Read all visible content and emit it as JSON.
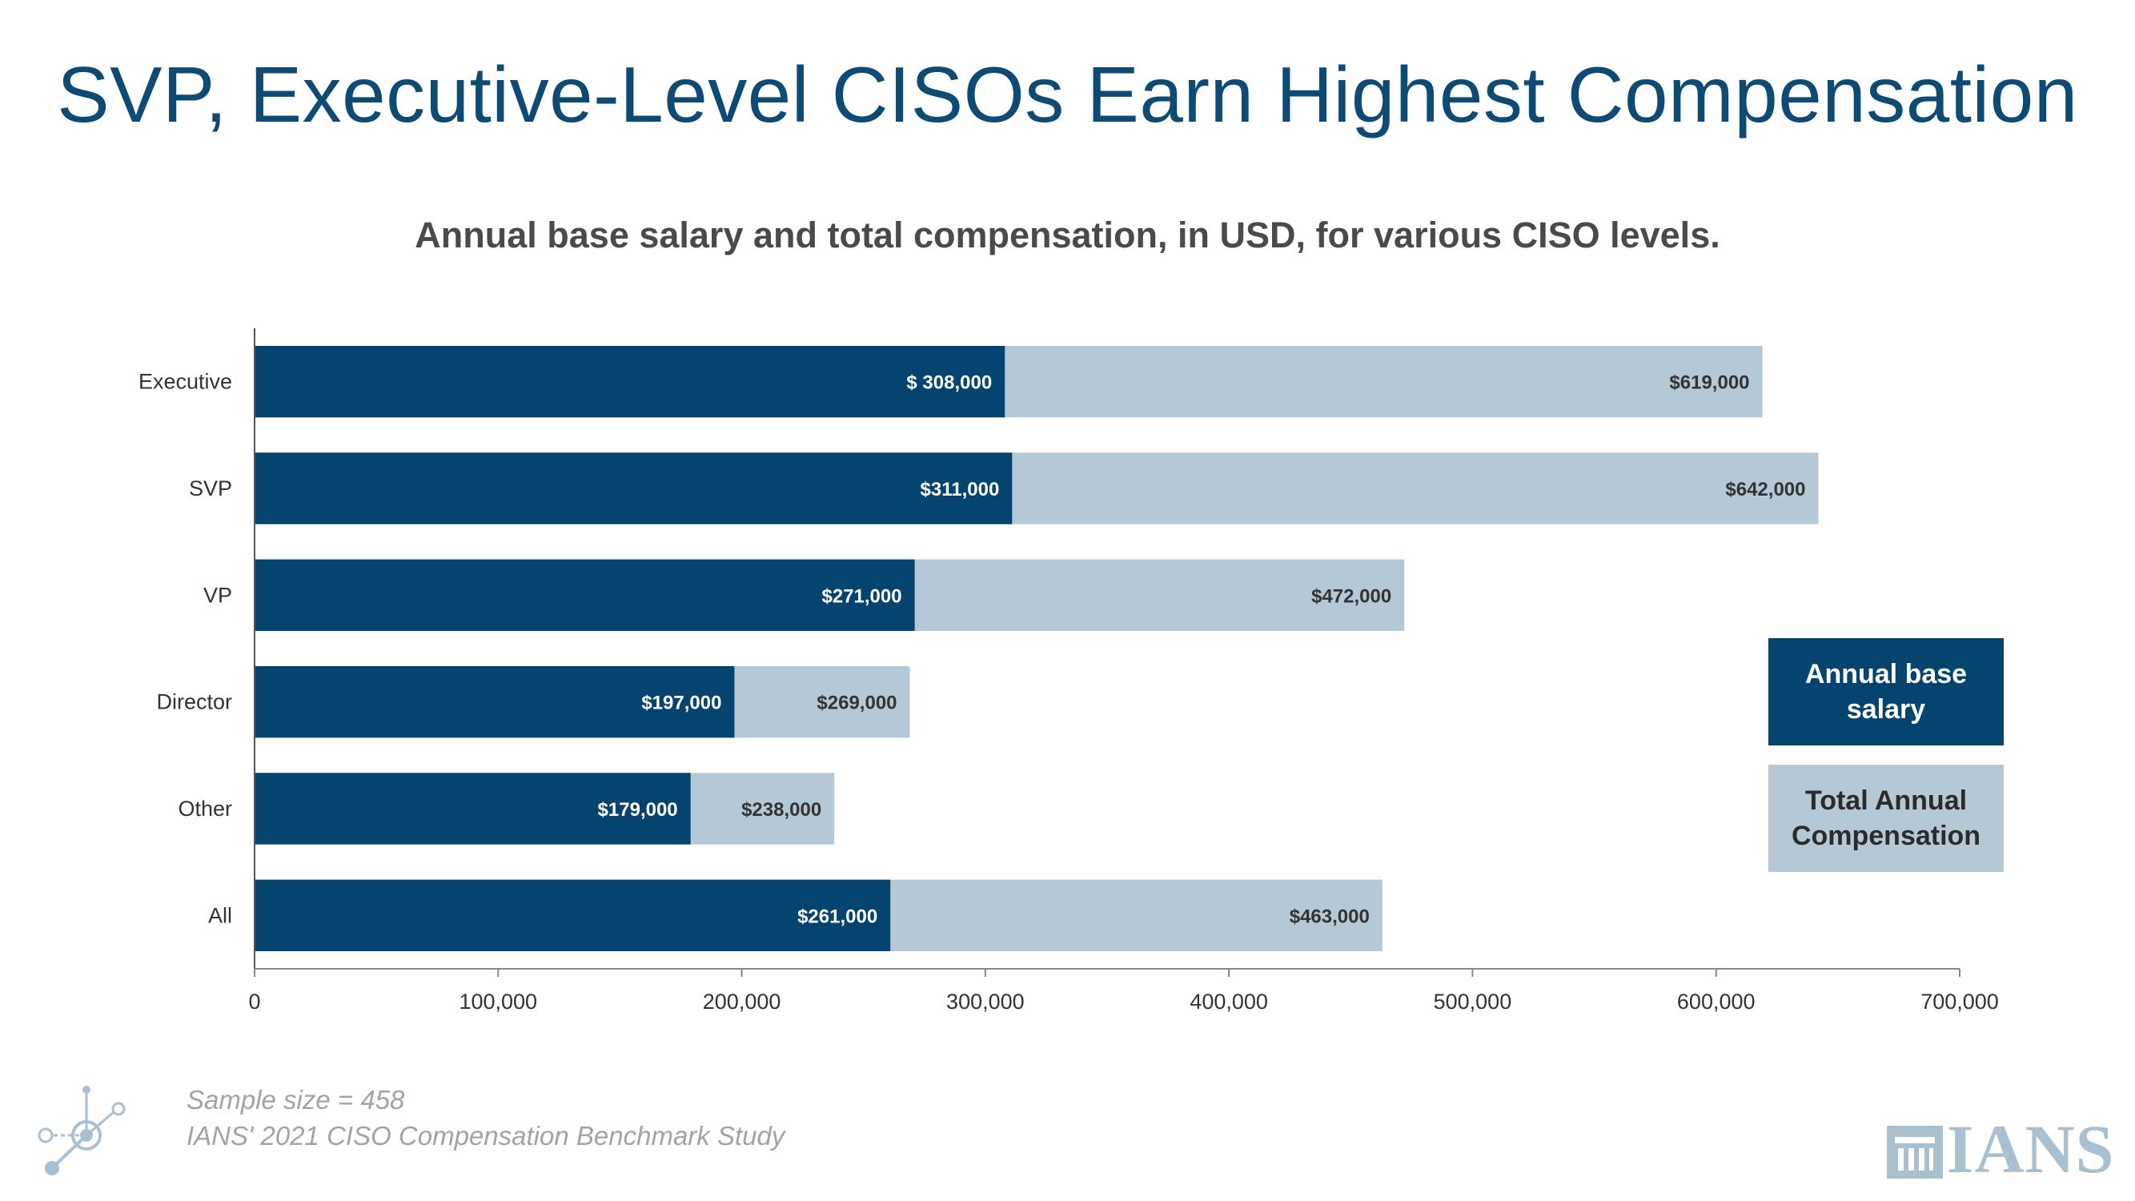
{
  "page": {
    "title": "SVP, Executive-Level CISOs Earn Highest Compensation",
    "subtitle": "Annual base salary and total compensation, in USD, for various CISO levels."
  },
  "legend": {
    "base_label": "Annual base salary",
    "total_label": "Total Annual Compensation"
  },
  "footnotes": {
    "sample": "Sample size = 458",
    "source": "IANS' 2021 CISO Compensation Benchmark Study"
  },
  "logo": {
    "text": "IANS"
  },
  "colors": {
    "title": "#0d4b75",
    "base": "#064470",
    "total": "#b4c8d5"
  },
  "chart_data": {
    "type": "bar",
    "orientation": "horizontal",
    "stacked": "overlay",
    "categories": [
      "Executive",
      "SVP",
      "VP",
      "Director",
      "Other",
      "All"
    ],
    "series": [
      {
        "name": "Annual base salary",
        "values": [
          308000,
          311000,
          271000,
          197000,
          179000,
          261000
        ],
        "labels": [
          "$ 308,000",
          "$311,000",
          "$271,000",
          "$197,000",
          "$179,000",
          "$261,000"
        ],
        "color": "#064470"
      },
      {
        "name": "Total Annual Compensation",
        "values": [
          619000,
          642000,
          472000,
          269000,
          238000,
          463000
        ],
        "labels": [
          "$619,000",
          "$642,000",
          "$472,000",
          "$269,000",
          "$238,000",
          "$463,000"
        ],
        "color": "#b4c8d5"
      }
    ],
    "xlim": [
      0,
      700000
    ],
    "xticks": [
      0,
      100000,
      200000,
      300000,
      400000,
      500000,
      600000,
      700000
    ],
    "xtick_labels": [
      "0",
      "100,000",
      "200,000",
      "300,000",
      "400,000",
      "500,000",
      "600,000",
      "700,000"
    ],
    "grid": false,
    "legend_position": "right"
  }
}
